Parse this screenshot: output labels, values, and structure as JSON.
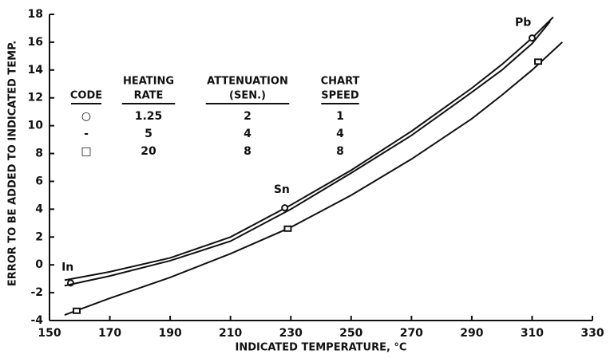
{
  "chart_data": {
    "type": "line",
    "x_label": "INDICATED TEMPERATURE, °C",
    "y_label": "ERROR TO BE ADDED TO INDICATED TEMP.",
    "xlim": [
      150,
      330
    ],
    "ylim": [
      -4,
      18
    ],
    "xticks": [
      150,
      170,
      190,
      210,
      230,
      250,
      270,
      290,
      310,
      330
    ],
    "yticks": [
      -4,
      -2,
      0,
      2,
      4,
      6,
      8,
      10,
      12,
      14,
      16,
      18
    ],
    "series": [
      {
        "color": "#111111",
        "marker": "circle",
        "x": [
          155,
          170,
          190,
          210,
          230,
          250,
          270,
          290,
          300,
          310,
          317
        ],
        "values": [
          -1.1,
          -0.5,
          0.5,
          2.0,
          4.3,
          6.8,
          9.6,
          12.7,
          14.4,
          16.3,
          17.8
        ],
        "marker_x": [
          157,
          228,
          310
        ],
        "marker_y": [
          -1.3,
          4.1,
          16.3
        ]
      },
      {
        "color": "#111111",
        "marker": "none",
        "x": [
          155,
          170,
          190,
          210,
          230,
          250,
          270,
          290,
          300,
          310,
          316
        ],
        "values": [
          -1.5,
          -0.8,
          0.3,
          1.7,
          4.0,
          6.6,
          9.3,
          12.4,
          14.0,
          15.9,
          17.5
        ]
      },
      {
        "color": "#111111",
        "marker": "square",
        "x": [
          155,
          170,
          190,
          210,
          230,
          250,
          270,
          290,
          300,
          310,
          320
        ],
        "values": [
          -3.6,
          -2.4,
          -0.9,
          0.8,
          2.7,
          5.0,
          7.6,
          10.5,
          12.2,
          14.0,
          16.0
        ],
        "marker_x": [
          159,
          229,
          312
        ],
        "marker_y": [
          -3.3,
          2.6,
          14.6
        ]
      }
    ],
    "annotations": [
      {
        "text": "In",
        "x": 156,
        "y": -0.2
      },
      {
        "text": "Sn",
        "x": 227,
        "y": 5.4
      },
      {
        "text": "Pb",
        "x": 307,
        "y": 17.4
      }
    ],
    "legend_table": {
      "header": [
        [
          "CODE"
        ],
        [
          "HEATING",
          "RATE"
        ],
        [
          "ATTENUATION",
          "(SEN.)"
        ],
        [
          "CHART",
          "SPEED"
        ]
      ],
      "rows": [
        [
          "○",
          "1.25",
          "2",
          "1"
        ],
        [
          "-",
          "5",
          "4",
          "4"
        ],
        [
          "□",
          "20",
          "8",
          "8"
        ]
      ]
    }
  }
}
